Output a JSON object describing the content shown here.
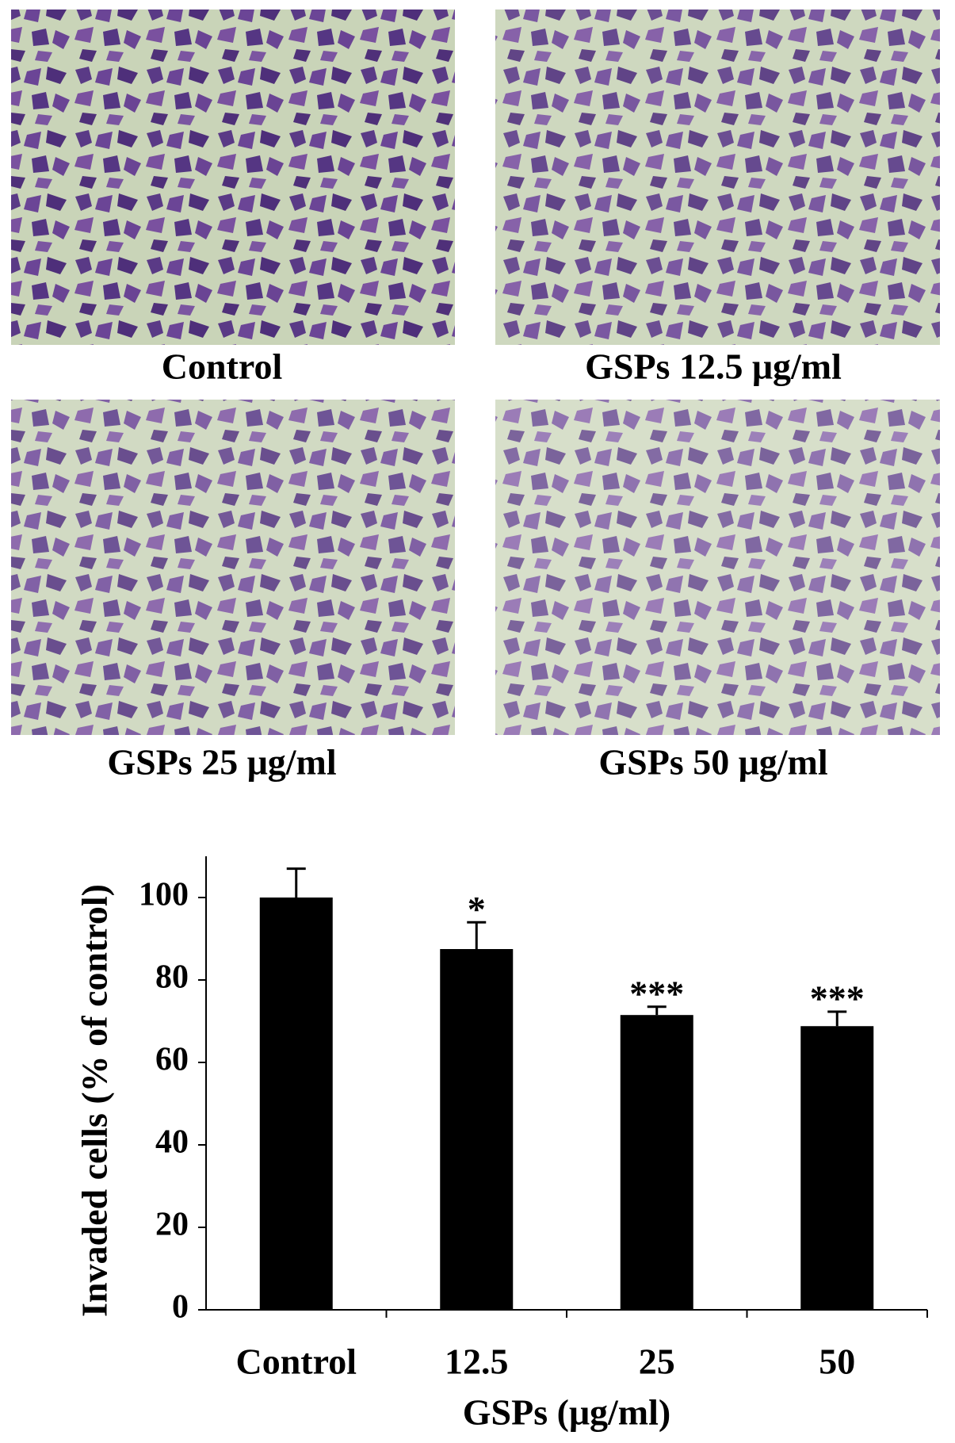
{
  "panels": [
    {
      "label": "Control"
    },
    {
      "label": "GSPs 12.5 μg/ml"
    },
    {
      "label": "GSPs 25 μg/ml"
    },
    {
      "label": "GSPs 50 μg/ml"
    }
  ],
  "chart_data": {
    "type": "bar",
    "ylabel": "Invaded cells (% of control)",
    "xlabel": "GSPs (μg/ml)",
    "categories": [
      "Control",
      "12.5",
      "25",
      "50"
    ],
    "values": [
      100,
      87.5,
      71.5,
      68.8
    ],
    "errors": [
      7,
      6.5,
      2,
      3.5
    ],
    "significance": [
      null,
      "*",
      "***",
      "***"
    ],
    "color": "#000000",
    "ylim": [
      0,
      110
    ],
    "yticks": [
      0,
      20,
      40,
      60,
      80,
      100
    ]
  }
}
